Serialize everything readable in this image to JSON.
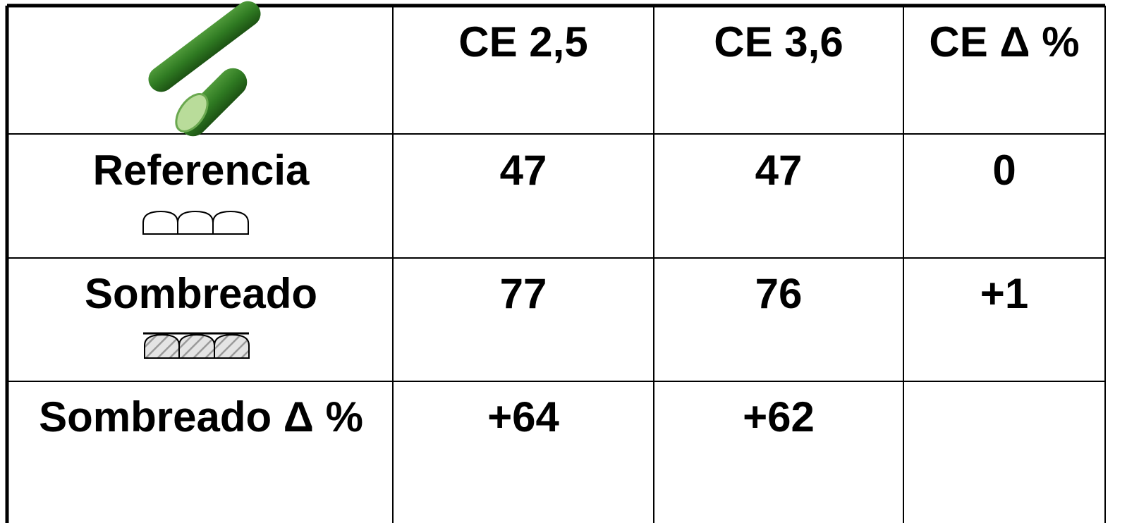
{
  "table": {
    "header": [
      "CE 2,5",
      "CE 3,6",
      "CE Δ %"
    ],
    "rows": [
      {
        "label": "Referencia",
        "values": [
          "47",
          "47",
          "0"
        ]
      },
      {
        "label": "Sombreado",
        "values": [
          "77",
          "76",
          "+1"
        ]
      },
      {
        "label": "Sombreado Δ %",
        "values": [
          "+64",
          "+62"
        ]
      }
    ]
  }
}
